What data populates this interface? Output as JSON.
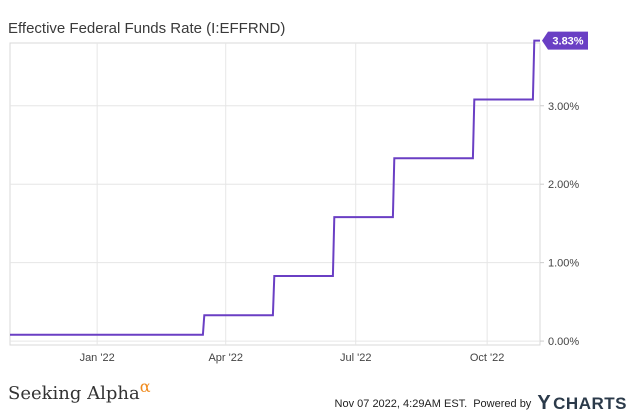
{
  "header": {
    "title": "Effective Federal Funds Rate (I:EFFRND)"
  },
  "footer": {
    "brand_name": "Seeking Alpha",
    "brand_mark": "α",
    "timestamp": "Nov 07 2022, 4:29AM EST.",
    "powered_by": "Powered by",
    "provider_mark": "Y",
    "provider_name": "CHARTS"
  },
  "colors": {
    "line": "#6a3fc4",
    "badge": "#6a3fc4",
    "grid": "#e6e6e6",
    "axis_text": "#444444",
    "brand_accent": "#f08a1c"
  },
  "chart_data": {
    "type": "line",
    "title": "Effective Federal Funds Rate (I:EFFRND)",
    "xlabel": "",
    "ylabel": "",
    "x_ticks": [
      {
        "label": "Jan '22",
        "date": "2022-01-01"
      },
      {
        "label": "Apr '22",
        "date": "2022-04-01"
      },
      {
        "label": "Jul '22",
        "date": "2022-07-01"
      },
      {
        "label": "Oct '22",
        "date": "2022-10-01"
      }
    ],
    "y_ticks": [
      {
        "label": "0.00%",
        "value": 0
      },
      {
        "label": "1.00%",
        "value": 1
      },
      {
        "label": "2.00%",
        "value": 2
      },
      {
        "label": "3.00%",
        "value": 3
      }
    ],
    "ylim": [
      -0.05,
      3.8
    ],
    "xlim": [
      "2021-11-01",
      "2022-11-07"
    ],
    "grid": true,
    "series": [
      {
        "points": [
          [
            "2021-11-01",
            0.08
          ],
          [
            "2022-03-16",
            0.08
          ],
          [
            "2022-03-17",
            0.33
          ],
          [
            "2022-05-04",
            0.33
          ],
          [
            "2022-05-05",
            0.83
          ],
          [
            "2022-06-15",
            0.83
          ],
          [
            "2022-06-16",
            1.58
          ],
          [
            "2022-07-27",
            1.58
          ],
          [
            "2022-07-28",
            2.33
          ],
          [
            "2022-09-21",
            2.33
          ],
          [
            "2022-09-22",
            3.08
          ],
          [
            "2022-11-02",
            3.08
          ],
          [
            "2022-11-03",
            3.83
          ],
          [
            "2022-11-07",
            3.83
          ]
        ]
      }
    ],
    "last_value_label": "3.83%"
  }
}
